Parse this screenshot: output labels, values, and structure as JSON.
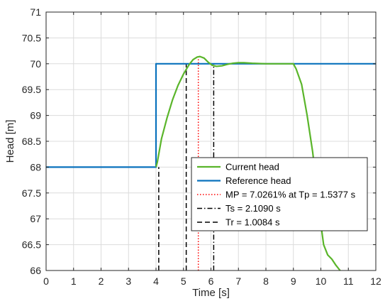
{
  "chart_data": {
    "type": "line",
    "title": "",
    "xlabel": "Time [s]",
    "ylabel": "Head [m]",
    "xlim": [
      0,
      12
    ],
    "ylim": [
      66,
      71
    ],
    "xticks": [
      0,
      1,
      2,
      3,
      4,
      5,
      6,
      7,
      8,
      9,
      10,
      11,
      12
    ],
    "yticks": [
      66,
      66.5,
      67,
      67.5,
      68,
      68.5,
      69,
      69.5,
      70,
      70.5,
      71
    ],
    "xtick_labels": [
      "0",
      "1",
      "2",
      "3",
      "4",
      "5",
      "6",
      "7",
      "8",
      "9",
      "10",
      "11",
      "12"
    ],
    "ytick_labels": [
      "66",
      "66.5",
      "67",
      "67.5",
      "68",
      "68.5",
      "69",
      "69.5",
      "70",
      "70.5",
      "71"
    ],
    "grid": true,
    "legend_position": "lower-right",
    "series": [
      {
        "name": "Current head",
        "color": "#5ab52a",
        "style": "solid",
        "x": [
          4.0,
          4.05,
          4.2,
          4.4,
          4.6,
          4.8,
          5.0,
          5.2,
          5.35,
          5.5,
          5.6,
          5.75,
          5.9,
          6.05,
          6.2,
          6.4,
          6.6,
          6.8,
          7.0,
          7.2,
          7.5,
          8.0,
          8.5,
          9.0,
          9.1,
          9.3,
          9.5,
          9.7,
          9.9,
          10.0,
          10.1,
          10.25,
          10.4,
          10.55,
          10.7
        ],
        "y": [
          68.0,
          68.1,
          68.55,
          68.95,
          69.3,
          69.58,
          69.8,
          69.98,
          70.08,
          70.13,
          70.14,
          70.11,
          70.03,
          69.97,
          69.95,
          69.96,
          69.99,
          70.01,
          70.02,
          70.02,
          70.01,
          70.0,
          70.0,
          70.0,
          69.9,
          69.6,
          69.0,
          68.3,
          67.4,
          66.9,
          66.5,
          66.3,
          66.22,
          66.1,
          66.0
        ]
      },
      {
        "name": "Reference head",
        "color": "#0a72bd",
        "style": "solid",
        "x": [
          0,
          4.0,
          4.0,
          12
        ],
        "y": [
          68,
          68,
          70,
          70
        ]
      },
      {
        "name": "MP = 7.0261% at Tp = 1.5377 s",
        "color": "#ff0000",
        "style": "dotted",
        "x": [
          5.54,
          5.54
        ],
        "y": [
          66,
          70.14
        ]
      },
      {
        "name": "Ts = 2.1090 s",
        "color": "#000000",
        "style": "dashdot",
        "x": [
          6.1,
          6.1
        ],
        "y": [
          66,
          70
        ]
      },
      {
        "name": "Tr = 1.0084 s",
        "color": "#000000",
        "style": "dashed",
        "markers": [
          {
            "x": [
              4.1,
              4.1
            ],
            "y": [
              66,
              68
            ]
          },
          {
            "x": [
              5.1,
              5.1
            ],
            "y": [
              66,
              70
            ]
          }
        ]
      }
    ]
  }
}
